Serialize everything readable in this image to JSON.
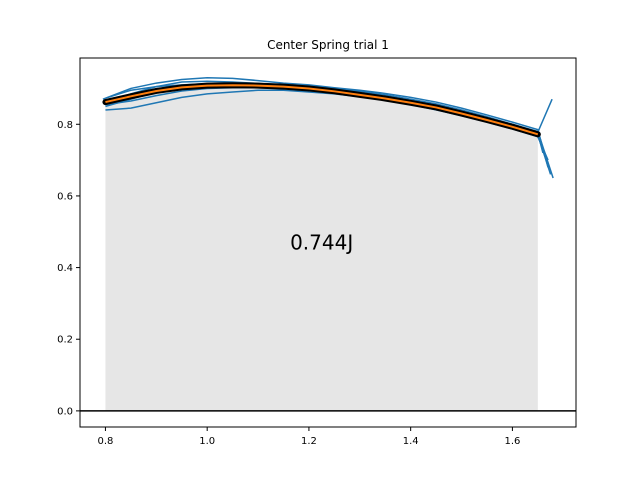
{
  "chart_data": {
    "type": "line",
    "title": "Center Spring trial 1",
    "xlabel": "",
    "ylabel": "",
    "xlim": [
      0.75,
      1.725
    ],
    "ylim": [
      -0.045,
      0.985
    ],
    "xticks": [
      0.8,
      1.0,
      1.2,
      1.4,
      1.6
    ],
    "xtick_labels": [
      "0.8",
      "1.0",
      "1.2",
      "1.4",
      "1.6"
    ],
    "yticks": [
      0.0,
      0.2,
      0.4,
      0.6,
      0.8
    ],
    "ytick_labels": [
      "0.0",
      "0.2",
      "0.4",
      "0.6",
      "0.8"
    ],
    "grid": false,
    "colors": {
      "trials": "#1f77b4",
      "mean": "#ff7f0e",
      "mean_outline": "#000000",
      "fill": "#e6e6e6",
      "zero_line": "#000000"
    },
    "fill_region": {
      "x_start": 0.8,
      "x_end": 1.65
    },
    "zero_line": 0.0,
    "annotation": {
      "text": "0.744J",
      "x": 1.225,
      "y": 0.47
    },
    "mean_curve": {
      "x": [
        0.8,
        0.85,
        0.9,
        0.95,
        1.0,
        1.05,
        1.1,
        1.15,
        1.2,
        1.25,
        1.3,
        1.35,
        1.4,
        1.45,
        1.5,
        1.55,
        1.6,
        1.65
      ],
      "y": [
        0.862,
        0.878,
        0.893,
        0.903,
        0.908,
        0.909,
        0.908,
        0.905,
        0.9,
        0.892,
        0.882,
        0.872,
        0.86,
        0.847,
        0.83,
        0.812,
        0.793,
        0.772
      ]
    },
    "trials": [
      {
        "x": [
          0.795,
          0.85,
          0.9,
          0.95,
          1.0,
          1.05,
          1.1,
          1.15,
          1.2,
          1.25,
          1.3,
          1.35,
          1.4,
          1.45,
          1.5,
          1.55,
          1.6,
          1.65,
          1.67
        ],
        "y": [
          0.87,
          0.9,
          0.915,
          0.925,
          0.93,
          0.928,
          0.922,
          0.915,
          0.91,
          0.902,
          0.895,
          0.886,
          0.875,
          0.862,
          0.845,
          0.826,
          0.806,
          0.785,
          0.68
        ]
      },
      {
        "x": [
          0.8,
          0.85,
          0.9,
          0.95,
          1.0,
          1.05,
          1.1,
          1.15,
          1.2,
          1.25,
          1.3,
          1.35,
          1.4,
          1.45,
          1.5,
          1.55,
          1.6,
          1.65,
          1.675
        ],
        "y": [
          0.84,
          0.845,
          0.86,
          0.875,
          0.885,
          0.89,
          0.895,
          0.895,
          0.89,
          0.885,
          0.877,
          0.868,
          0.856,
          0.842,
          0.826,
          0.808,
          0.79,
          0.77,
          0.66
        ]
      },
      {
        "x": [
          0.8,
          0.85,
          0.9,
          0.95,
          1.0,
          1.05,
          1.1,
          1.15,
          1.2,
          1.25,
          1.3,
          1.35,
          1.4,
          1.45,
          1.5,
          1.55,
          1.6,
          1.65,
          1.68
        ],
        "y": [
          0.86,
          0.885,
          0.905,
          0.918,
          0.92,
          0.918,
          0.914,
          0.909,
          0.905,
          0.897,
          0.888,
          0.877,
          0.865,
          0.852,
          0.835,
          0.818,
          0.8,
          0.78,
          0.65
        ]
      },
      {
        "x": [
          0.8,
          0.85,
          0.9,
          0.95,
          1.0,
          1.05,
          1.1,
          1.15,
          1.2,
          1.25,
          1.3,
          1.35,
          1.4,
          1.45,
          1.5,
          1.55,
          1.6,
          1.65,
          1.67
        ],
        "y": [
          0.855,
          0.865,
          0.88,
          0.893,
          0.9,
          0.902,
          0.902,
          0.9,
          0.895,
          0.888,
          0.878,
          0.867,
          0.855,
          0.84,
          0.824,
          0.806,
          0.787,
          0.765,
          0.7
        ]
      },
      {
        "x": [
          0.805,
          0.85,
          0.9,
          0.95,
          1.0,
          1.05,
          1.1,
          1.15,
          1.2,
          1.25,
          1.3,
          1.35,
          1.4,
          1.45,
          1.5,
          1.55,
          1.6,
          1.65,
          1.678
        ],
        "y": [
          0.875,
          0.895,
          0.905,
          0.91,
          0.913,
          0.914,
          0.913,
          0.91,
          0.906,
          0.9,
          0.892,
          0.882,
          0.87,
          0.857,
          0.84,
          0.821,
          0.8,
          0.778,
          0.87
        ]
      },
      {
        "x": [
          0.8,
          0.85,
          0.9,
          0.95,
          1.0,
          1.05,
          1.1,
          1.15,
          1.2,
          1.25,
          1.3,
          1.35,
          1.4,
          1.45,
          1.5,
          1.55,
          1.6,
          1.65,
          1.66
        ],
        "y": [
          0.85,
          0.87,
          0.89,
          0.905,
          0.912,
          0.912,
          0.908,
          0.904,
          0.898,
          0.892,
          0.884,
          0.874,
          0.862,
          0.848,
          0.832,
          0.815,
          0.796,
          0.775,
          0.72
        ]
      }
    ]
  }
}
